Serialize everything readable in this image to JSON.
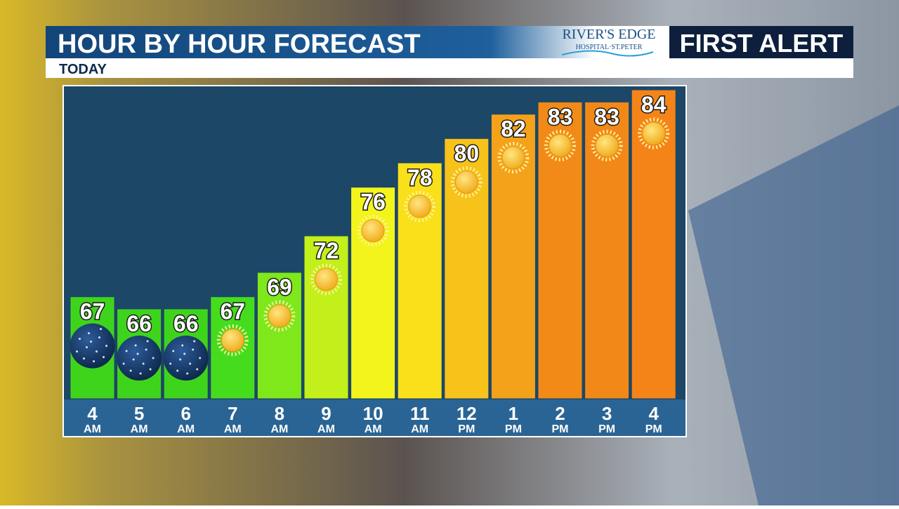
{
  "chart_data": {
    "type": "bar",
    "title": "HOUR BY HOUR FORECAST",
    "subtitle": "TODAY",
    "categories": [
      "4",
      "5",
      "6",
      "7",
      "8",
      "9",
      "10",
      "11",
      "12",
      "1",
      "2",
      "3",
      "4"
    ],
    "category_periods": [
      "AM",
      "AM",
      "AM",
      "AM",
      "AM",
      "AM",
      "AM",
      "AM",
      "PM",
      "PM",
      "PM",
      "PM",
      "PM"
    ],
    "values": [
      67,
      66,
      66,
      67,
      69,
      72,
      76,
      78,
      80,
      82,
      83,
      83,
      84
    ],
    "colors": [
      "#3fd41c",
      "#3fd41c",
      "#3fd41c",
      "#45dc1e",
      "#7ee81a",
      "#c3f01a",
      "#f2f41c",
      "#f9e01a",
      "#f7c21a",
      "#f4a21a",
      "#f28a18",
      "#f28818",
      "#f58418"
    ],
    "icons": [
      "moon",
      "moon",
      "moon",
      "sun",
      "sun",
      "sun",
      "sun",
      "sun",
      "sun",
      "sun",
      "sun",
      "sun",
      "sun"
    ]
  },
  "branding": {
    "sponsor": "RIVER'S EDGE",
    "sponsor_sub": "HOSPITAL·ST.PETER",
    "badge": "FIRST ALERT"
  }
}
